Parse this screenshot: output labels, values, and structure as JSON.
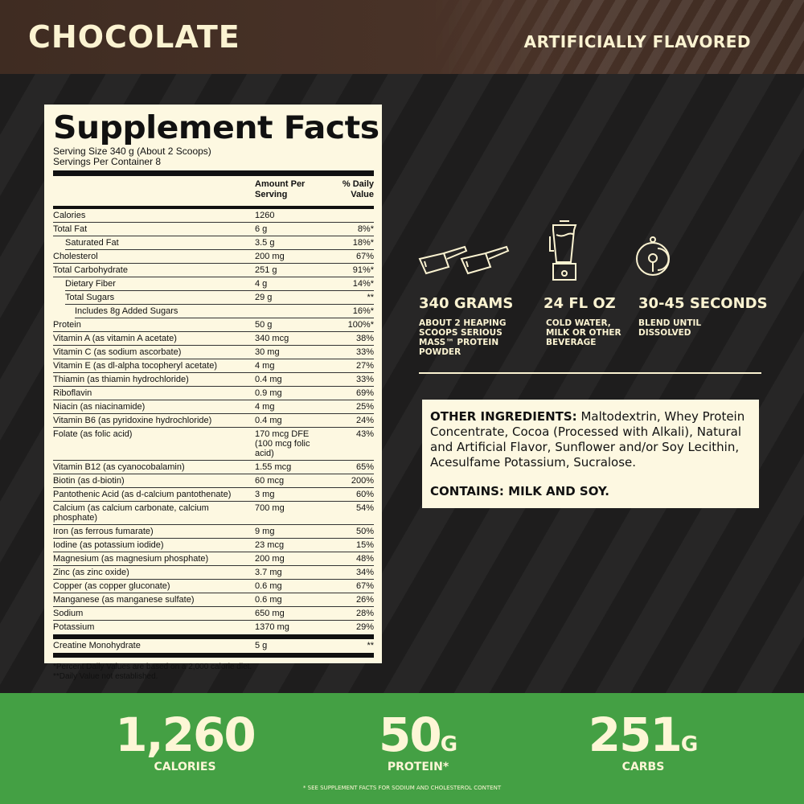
{
  "header": {
    "flavor": "CHOCOLATE",
    "flavor_note": "ARTIFICIALLY FLAVORED"
  },
  "facts": {
    "title": "Supplement Facts",
    "serving_size": "Serving Size 340 g (About 2 Scoops)",
    "servings_per_container": "Servings Per Container 8",
    "col_amount": "Amount Per Serving",
    "col_dv": "% Daily Value",
    "rows": [
      {
        "name": "Calories",
        "amount": "1260",
        "dv": "",
        "indent": 0
      },
      {
        "name": "Total Fat",
        "amount": "6 g",
        "dv": "8%*",
        "indent": 0
      },
      {
        "name": "Saturated Fat",
        "amount": "3.5 g",
        "dv": "18%*",
        "indent": 1
      },
      {
        "name": "Cholesterol",
        "amount": "200 mg",
        "dv": "67%",
        "indent": 0
      },
      {
        "name": "Total Carbohydrate",
        "amount": "251 g",
        "dv": "91%*",
        "indent": 0
      },
      {
        "name": "Dietary Fiber",
        "amount": "4 g",
        "dv": "14%*",
        "indent": 1
      },
      {
        "name": "Total Sugars",
        "amount": "29 g",
        "dv": "**",
        "indent": 1
      },
      {
        "name": "Includes 8g Added Sugars",
        "amount": "",
        "dv": "16%*",
        "indent": 2
      },
      {
        "name": "Protein",
        "amount": "50 g",
        "dv": "100%*",
        "indent": 0
      },
      {
        "name": "Vitamin A (as vitamin A acetate)",
        "amount": "340 mcg",
        "dv": "38%",
        "indent": 0
      },
      {
        "name": "Vitamin C (as sodium ascorbate)",
        "amount": "30 mg",
        "dv": "33%",
        "indent": 0
      },
      {
        "name": "Vitamin E (as dl-alpha tocopheryl acetate)",
        "amount": "4 mg",
        "dv": "27%",
        "indent": 0
      },
      {
        "name": "Thiamin (as thiamin hydrochloride)",
        "amount": "0.4 mg",
        "dv": "33%",
        "indent": 0
      },
      {
        "name": "Riboflavin",
        "amount": "0.9 mg",
        "dv": "69%",
        "indent": 0
      },
      {
        "name": "Niacin (as niacinamide)",
        "amount": "4 mg",
        "dv": "25%",
        "indent": 0
      },
      {
        "name": "Vitamin B6 (as pyridoxine hydrochloride)",
        "amount": "0.4 mg",
        "dv": "24%",
        "indent": 0
      },
      {
        "name": "Folate (as folic acid)",
        "amount": "170 mcg DFE (100 mcg folic acid)",
        "dv": "43%",
        "indent": 0
      },
      {
        "name": "Vitamin B12 (as cyanocobalamin)",
        "amount": "1.55 mcg",
        "dv": "65%",
        "indent": 0
      },
      {
        "name": "Biotin (as d-biotin)",
        "amount": "60 mcg",
        "dv": "200%",
        "indent": 0
      },
      {
        "name": "Pantothenic Acid (as d-calcium pantothenate)",
        "amount": "3 mg",
        "dv": "60%",
        "indent": 0
      },
      {
        "name": "Calcium (as calcium carbonate, calcium phosphate)",
        "amount": "700 mg",
        "dv": "54%",
        "indent": 0
      },
      {
        "name": "Iron (as ferrous fumarate)",
        "amount": "9 mg",
        "dv": "50%",
        "indent": 0
      },
      {
        "name": "Iodine (as potassium iodide)",
        "amount": "23 mcg",
        "dv": "15%",
        "indent": 0
      },
      {
        "name": "Magnesium (as magnesium phosphate)",
        "amount": "200 mg",
        "dv": "48%",
        "indent": 0
      },
      {
        "name": "Zinc (as zinc oxide)",
        "amount": "3.7 mg",
        "dv": "34%",
        "indent": 0
      },
      {
        "name": "Copper (as copper gluconate)",
        "amount": "0.6 mg",
        "dv": "67%",
        "indent": 0
      },
      {
        "name": "Manganese (as manganese sulfate)",
        "amount": "0.6 mg",
        "dv": "26%",
        "indent": 0
      },
      {
        "name": "Sodium",
        "amount": "650 mg",
        "dv": "28%",
        "indent": 0
      },
      {
        "name": "Potassium",
        "amount": "1370 mg",
        "dv": "29%",
        "indent": 0
      }
    ],
    "creatine": {
      "name": "Creatine Monohydrate",
      "amount": "5 g",
      "dv": "**"
    },
    "footnote1": "*Percent Daily Values are based on a 2,000 calorie diet.",
    "footnote2": "**Daily Value not established."
  },
  "directions": [
    {
      "icon": "scoops-icon",
      "title": "340 GRAMS",
      "desc": "ABOUT 2 HEAPING SCOOPS SERIOUS MASS™ PROTEIN POWDER"
    },
    {
      "icon": "blender-icon",
      "title": "24 FL OZ",
      "desc": "COLD WATER, MILK OR OTHER BEVERAGE"
    },
    {
      "icon": "timer-icon",
      "title": "30-45 SECONDS",
      "desc": "BLEND UNTIL DISSOLVED"
    }
  ],
  "ingredients": {
    "label": "OTHER INGREDIENTS:",
    "text": "Maltodextrin, Whey Protein Concentrate, Cocoa (Processed with Alkali), Natural and Artificial Flavor, Sunflower and/or Soy Lecithin, Acesulfame Potassium, Sucralose.",
    "contains": "CONTAINS: MILK AND SOY."
  },
  "highlights": [
    {
      "value": "1,260",
      "unit": "",
      "label": "CALORIES"
    },
    {
      "value": "50",
      "unit": "G",
      "label": "PROTEIN*"
    },
    {
      "value": "251",
      "unit": "G",
      "label": "CARBS"
    }
  ],
  "highlight_note": "* SEE SUPPLEMENT FACTS FOR SODIUM AND CHOLESTEROL CONTENT",
  "colors": {
    "brown": "#4a3328",
    "cream": "#fdf8e1",
    "green": "#44a044",
    "dark": "#201f1f"
  }
}
